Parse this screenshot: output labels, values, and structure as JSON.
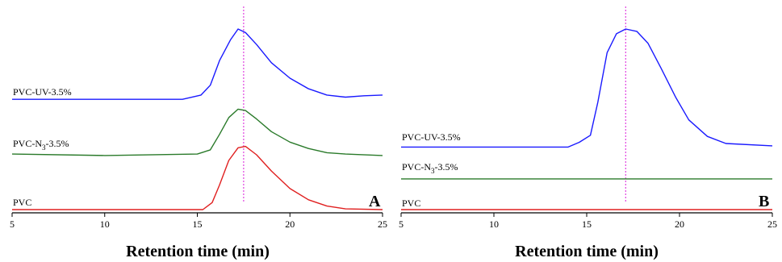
{
  "chart_data": [
    {
      "type": "line",
      "panel_label": "A",
      "xlabel": "Retention time (min)",
      "ylabel": "",
      "xlim": [
        5,
        25
      ],
      "xticks": [
        5,
        10,
        15,
        20,
        25
      ],
      "y_axis_shown": false,
      "grid": false,
      "reference_line": {
        "x": 17.5,
        "color": "#e040e0",
        "style": "dotted"
      },
      "series": [
        {
          "name": "PVC-UV-3.5%",
          "color": "#1a1aff",
          "baseline": 0.0,
          "points": [
            [
              5,
              0.0
            ],
            [
              14.2,
              0.0
            ],
            [
              15.2,
              0.06
            ],
            [
              15.7,
              0.2
            ],
            [
              16.2,
              0.55
            ],
            [
              16.8,
              0.85
            ],
            [
              17.2,
              1.0
            ],
            [
              17.6,
              0.95
            ],
            [
              18.2,
              0.78
            ],
            [
              19,
              0.52
            ],
            [
              20,
              0.3
            ],
            [
              21,
              0.15
            ],
            [
              22,
              0.06
            ],
            [
              23,
              0.03
            ],
            [
              24,
              0.05
            ],
            [
              25,
              0.06
            ]
          ]
        },
        {
          "name": "PVC-N3-3.5%",
          "color": "#2a7a2a",
          "baseline": -0.78,
          "points": [
            [
              5,
              0.0
            ],
            [
              10,
              -0.02
            ],
            [
              15,
              0.0
            ],
            [
              15.7,
              0.06
            ],
            [
              16.2,
              0.28
            ],
            [
              16.7,
              0.52
            ],
            [
              17.2,
              0.64
            ],
            [
              17.6,
              0.62
            ],
            [
              18.2,
              0.5
            ],
            [
              19,
              0.32
            ],
            [
              20,
              0.17
            ],
            [
              21,
              0.08
            ],
            [
              22,
              0.02
            ],
            [
              23,
              0.0
            ],
            [
              25,
              -0.02
            ]
          ]
        },
        {
          "name": "PVC",
          "color": "#e02020",
          "baseline": -1.57,
          "points": [
            [
              5,
              0.0
            ],
            [
              15.3,
              0.0
            ],
            [
              15.8,
              0.1
            ],
            [
              16.2,
              0.35
            ],
            [
              16.7,
              0.7
            ],
            [
              17.2,
              0.88
            ],
            [
              17.6,
              0.9
            ],
            [
              18.2,
              0.78
            ],
            [
              19,
              0.55
            ],
            [
              20,
              0.3
            ],
            [
              21,
              0.14
            ],
            [
              22,
              0.05
            ],
            [
              23,
              0.01
            ],
            [
              25,
              0.0
            ]
          ]
        }
      ]
    },
    {
      "type": "line",
      "panel_label": "B",
      "xlabel": "Retention time (min)",
      "ylabel": "",
      "xlim": [
        5,
        25
      ],
      "xticks": [
        5,
        10,
        15,
        20,
        25
      ],
      "y_axis_shown": false,
      "grid": false,
      "reference_line": {
        "x": 17.1,
        "color": "#e040e0",
        "style": "dotted"
      },
      "series": [
        {
          "name": "PVC-UV-3.5%",
          "color": "#1a1aff",
          "baseline": 0.0,
          "points": [
            [
              5,
              0.0
            ],
            [
              14,
              0.0
            ],
            [
              14.6,
              0.04
            ],
            [
              15.2,
              0.1
            ],
            [
              15.6,
              0.38
            ],
            [
              16.1,
              0.8
            ],
            [
              16.6,
              0.96
            ],
            [
              17.1,
              1.0
            ],
            [
              17.7,
              0.98
            ],
            [
              18.3,
              0.88
            ],
            [
              19,
              0.67
            ],
            [
              19.8,
              0.42
            ],
            [
              20.5,
              0.23
            ],
            [
              21.5,
              0.09
            ],
            [
              22.5,
              0.03
            ],
            [
              25,
              0.01
            ]
          ]
        },
        {
          "name": "PVC-N3-3.5%",
          "color": "#2a7a2a",
          "baseline": -0.27,
          "points": [
            [
              5,
              0.0
            ],
            [
              25,
              0.0
            ]
          ]
        },
        {
          "name": "PVC",
          "color": "#e02020",
          "baseline": -0.53,
          "points": [
            [
              5,
              0.0
            ],
            [
              25,
              0.0
            ]
          ]
        }
      ]
    }
  ]
}
